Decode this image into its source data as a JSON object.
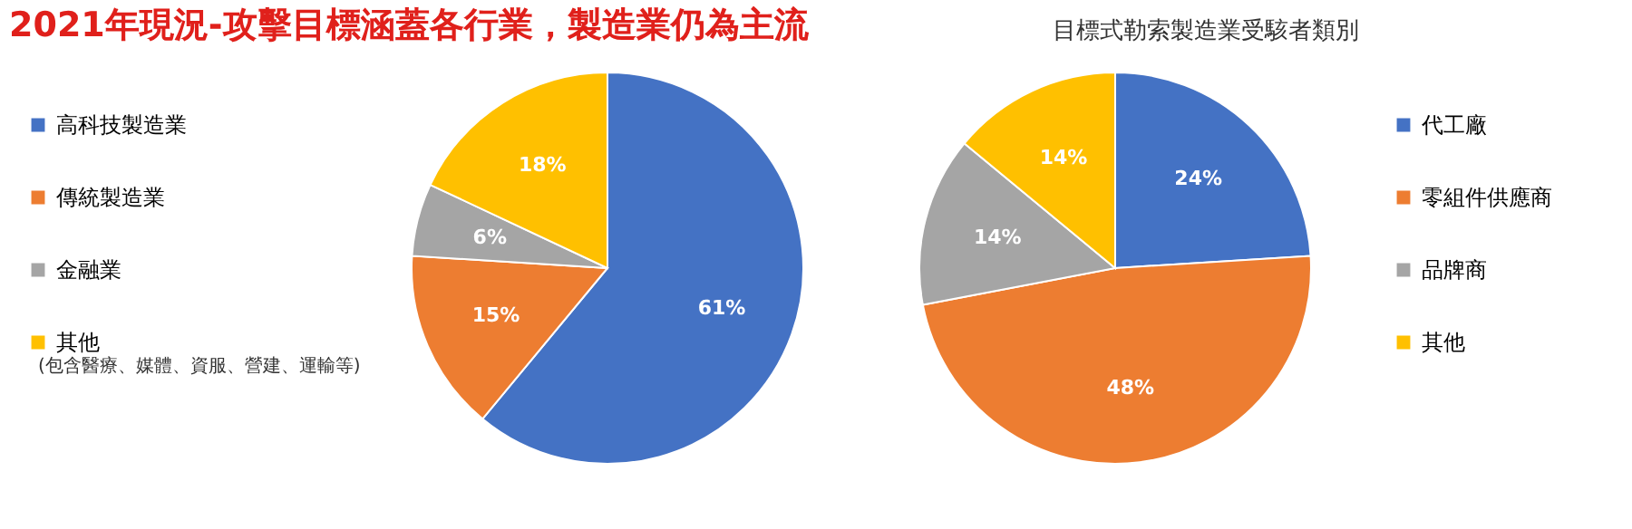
{
  "chart_data": [
    {
      "type": "pie",
      "title": "2021年現況-攻擊目標涵蓋各行業，製造業仍為主流",
      "categories": [
        "高科技製造業",
        "傳統製造業",
        "金融業",
        "其他"
      ],
      "values": [
        61,
        15,
        6,
        18
      ],
      "value_labels": [
        "61%",
        "15%",
        "6%",
        "18%"
      ],
      "colors": [
        "#4472c4",
        "#ed7d31",
        "#a5a5a5",
        "#ffc000"
      ],
      "legend": "left",
      "annotations": [
        "(包含醫療、媒體、資服、營建、運輸等)"
      ]
    },
    {
      "type": "pie",
      "title": "目標式勒索製造業受駭者類別",
      "categories": [
        "代工廠",
        "零組件供應商",
        "品牌商",
        "其他"
      ],
      "values": [
        24,
        48,
        14,
        14
      ],
      "value_labels": [
        "24%",
        "48%",
        "14%",
        "14%"
      ],
      "colors": [
        "#4472c4",
        "#ed7d31",
        "#a5a5a5",
        "#ffc000"
      ],
      "legend": "right"
    }
  ]
}
